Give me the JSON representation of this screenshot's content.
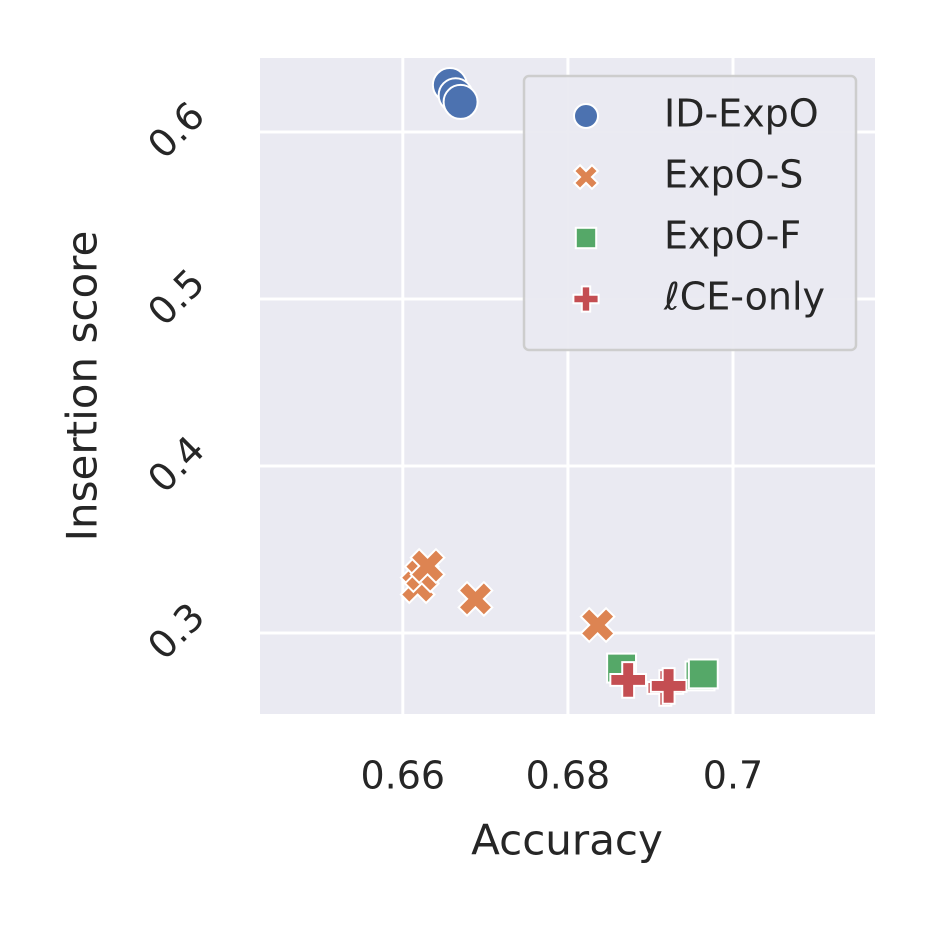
{
  "chart_data": {
    "type": "scatter",
    "x_label": "Accuracy",
    "y_label": "Insertion score",
    "xlim": [
      0.6427,
      0.7172
    ],
    "ylim": [
      0.2515,
      0.6443
    ],
    "xticks": [
      0.66,
      0.68,
      0.7
    ],
    "yticks": [
      0.3,
      0.4,
      0.5,
      0.6
    ],
    "grid": true,
    "legend": "upper right",
    "series": [
      {
        "name": "ID-ExpO",
        "color": "#4c72b0",
        "marker": "circle",
        "x": [
          0.6657,
          0.6664,
          0.667
        ],
        "values": [
          0.6281,
          0.622,
          0.618
        ]
      },
      {
        "name": "ExpO-S",
        "color": "#dd8452",
        "marker": "x",
        "x": [
          0.6618,
          0.6623,
          0.663,
          0.6688,
          0.6836
        ],
        "values": [
          0.3281,
          0.3347,
          0.3401,
          0.3204,
          0.3048
        ]
      },
      {
        "name": "ExpO-F",
        "color": "#55a868",
        "marker": "square",
        "x": [
          0.6865,
          0.696,
          0.6964
        ],
        "values": [
          0.279,
          0.2743,
          0.2755
        ]
      },
      {
        "name": "ℓCE-only",
        "color": "#c44e52",
        "marker": "plus",
        "x": [
          0.6873,
          0.6918,
          0.6922
        ],
        "values": [
          0.2719,
          0.2671,
          0.2683
        ]
      }
    ]
  }
}
